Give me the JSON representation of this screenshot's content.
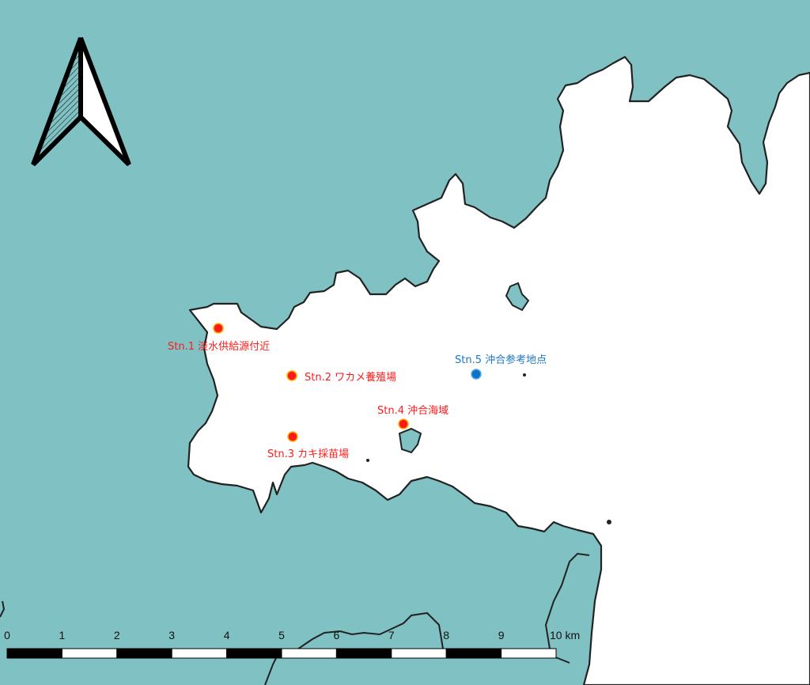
{
  "colors": {
    "land": "#80c1c3",
    "water": "#ffffff",
    "coast": "#222222",
    "station_red": "#ff1a1a",
    "station_outline": "#ffb000",
    "station_blue": "#0b74c9",
    "label_red": "#ff1a1a",
    "label_blue": "#1b78c8"
  },
  "north_arrow": {
    "icon": "north-arrow-icon"
  },
  "stations": [
    {
      "id": "Stn.1",
      "name": "淡水供給源付近",
      "label": "Stn.1  淡水供給源付近",
      "color": "red"
    },
    {
      "id": "Stn.2",
      "name": "ワカメ養殖場",
      "label": "Stn.2  ワカメ養殖場",
      "color": "red"
    },
    {
      "id": "Stn.3",
      "name": "カキ採苗場",
      "label": "Stn.3  カキ採苗場",
      "color": "red"
    },
    {
      "id": "Stn.4",
      "name": "沖合海域",
      "label": "Stn.4  沖合海域",
      "color": "red"
    },
    {
      "id": "Stn.5",
      "name": "沖合参考地点",
      "label": "Stn.5  沖合参考地点",
      "color": "blue"
    }
  ],
  "scale_bar": {
    "ticks": [
      "0",
      "1",
      "2",
      "3",
      "4",
      "5",
      "6",
      "7",
      "8",
      "9",
      "10 km"
    ],
    "unit": "km",
    "max": 10
  }
}
